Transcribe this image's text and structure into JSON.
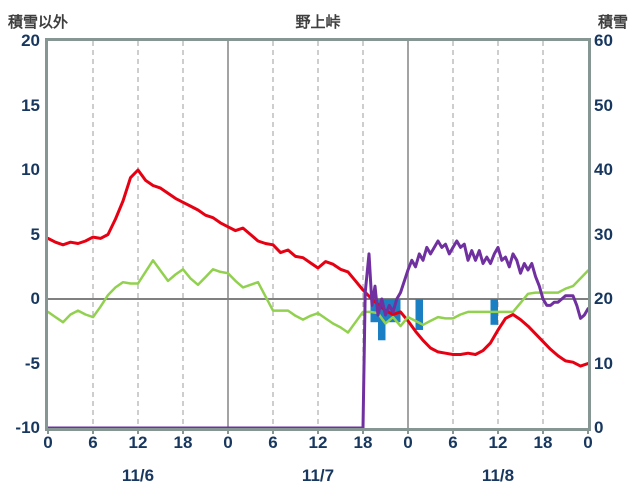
{
  "header": {
    "left_axis_title": "積雪以外",
    "chart_title": "野上峠",
    "right_axis_title": "積雪"
  },
  "colors": {
    "frame": "#859693",
    "grid_dashed": "#a6a6a6",
    "grid_solid": "#8c8c8c",
    "zero_line": "#808080",
    "axis_text": "#17375e",
    "title_text": "#3f3f3f",
    "red_line": "#e60012",
    "green_line": "#92d14f",
    "purple_line": "#7030a0",
    "blue_bars": "#1b7fc3"
  },
  "chart_data": {
    "type": "line",
    "title": "野上峠",
    "left_axis": {
      "label": "積雪以外",
      "min": -10,
      "max": 20,
      "ticks": [
        20,
        15,
        10,
        5,
        0,
        -5,
        -10
      ]
    },
    "right_axis": {
      "label": "積雪",
      "min": 0,
      "max": 60,
      "ticks": [
        60,
        50,
        40,
        30,
        20,
        10,
        0
      ]
    },
    "x_axis": {
      "hours_total": 72,
      "tick_interval_hours": 6,
      "tick_labels": [
        "0",
        "6",
        "12",
        "18",
        "0",
        "6",
        "12",
        "18",
        "0",
        "6",
        "12",
        "18",
        "0"
      ],
      "solid_gridline_hours": [
        24,
        48
      ],
      "date_labels": [
        {
          "label": "11/6",
          "center_hour": 12
        },
        {
          "label": "11/7",
          "center_hour": 36
        },
        {
          "label": "11/8",
          "center_hour": 60
        }
      ]
    },
    "grid": {
      "horizontal": "zero-line-only",
      "vertical": "every-6-hours"
    },
    "legend": "none",
    "series": [
      {
        "name": "temperature-red",
        "axis": "left",
        "color": "#e60012",
        "width": 3,
        "points": [
          [
            0,
            4.7
          ],
          [
            1,
            4.4
          ],
          [
            2,
            4.2
          ],
          [
            3,
            4.4
          ],
          [
            4,
            4.3
          ],
          [
            5,
            4.5
          ],
          [
            6,
            4.8
          ],
          [
            7,
            4.7
          ],
          [
            8,
            5.0
          ],
          [
            9,
            6.2
          ],
          [
            10,
            7.6
          ],
          [
            11,
            9.4
          ],
          [
            12,
            10.0
          ],
          [
            13,
            9.2
          ],
          [
            14,
            8.8
          ],
          [
            15,
            8.6
          ],
          [
            16,
            8.2
          ],
          [
            17,
            7.8
          ],
          [
            18,
            7.5
          ],
          [
            19,
            7.2
          ],
          [
            20,
            6.9
          ],
          [
            21,
            6.5
          ],
          [
            22,
            6.3
          ],
          [
            23,
            5.9
          ],
          [
            24,
            5.6
          ],
          [
            25,
            5.3
          ],
          [
            26,
            5.5
          ],
          [
            27,
            5.0
          ],
          [
            28,
            4.5
          ],
          [
            29,
            4.3
          ],
          [
            30,
            4.2
          ],
          [
            31,
            3.6
          ],
          [
            32,
            3.8
          ],
          [
            33,
            3.3
          ],
          [
            34,
            3.2
          ],
          [
            35,
            2.8
          ],
          [
            36,
            2.4
          ],
          [
            37,
            2.9
          ],
          [
            38,
            2.7
          ],
          [
            39,
            2.3
          ],
          [
            40,
            2.1
          ],
          [
            41,
            1.4
          ],
          [
            42,
            0.7
          ],
          [
            43,
            0.1
          ],
          [
            44,
            -0.4
          ],
          [
            45,
            -0.9
          ],
          [
            46,
            -1.2
          ],
          [
            47,
            -1.0
          ],
          [
            48,
            -1.7
          ],
          [
            49,
            -2.5
          ],
          [
            50,
            -3.2
          ],
          [
            51,
            -3.8
          ],
          [
            52,
            -4.1
          ],
          [
            53,
            -4.2
          ],
          [
            54,
            -4.3
          ],
          [
            55,
            -4.3
          ],
          [
            56,
            -4.2
          ],
          [
            57,
            -4.3
          ],
          [
            58,
            -4.0
          ],
          [
            59,
            -3.4
          ],
          [
            60,
            -2.4
          ],
          [
            61,
            -1.5
          ],
          [
            62,
            -1.2
          ],
          [
            63,
            -1.6
          ],
          [
            64,
            -2.1
          ],
          [
            65,
            -2.7
          ],
          [
            66,
            -3.3
          ],
          [
            67,
            -3.9
          ],
          [
            68,
            -4.4
          ],
          [
            69,
            -4.8
          ],
          [
            70,
            -4.9
          ],
          [
            71,
            -5.2
          ],
          [
            72,
            -5.0
          ]
        ]
      },
      {
        "name": "road-temp-green",
        "axis": "left",
        "color": "#92d14f",
        "width": 2.5,
        "points": [
          [
            0,
            -1.0
          ],
          [
            1,
            -1.4
          ],
          [
            2,
            -1.8
          ],
          [
            3,
            -1.2
          ],
          [
            4,
            -0.9
          ],
          [
            5,
            -1.2
          ],
          [
            6,
            -1.4
          ],
          [
            7,
            -0.6
          ],
          [
            8,
            0.3
          ],
          [
            9,
            0.9
          ],
          [
            10,
            1.3
          ],
          [
            11,
            1.2
          ],
          [
            12,
            1.2
          ],
          [
            13,
            2.1
          ],
          [
            14,
            3.0
          ],
          [
            15,
            2.2
          ],
          [
            16,
            1.4
          ],
          [
            17,
            1.9
          ],
          [
            18,
            2.3
          ],
          [
            19,
            1.6
          ],
          [
            20,
            1.1
          ],
          [
            21,
            1.7
          ],
          [
            22,
            2.3
          ],
          [
            23,
            2.1
          ],
          [
            24,
            2.0
          ],
          [
            25,
            1.4
          ],
          [
            26,
            0.9
          ],
          [
            27,
            1.1
          ],
          [
            28,
            1.3
          ],
          [
            29,
            0.2
          ],
          [
            30,
            -0.9
          ],
          [
            31,
            -0.9
          ],
          [
            32,
            -0.9
          ],
          [
            33,
            -1.3
          ],
          [
            34,
            -1.6
          ],
          [
            35,
            -1.3
          ],
          [
            36,
            -1.1
          ],
          [
            37,
            -1.5
          ],
          [
            38,
            -1.9
          ],
          [
            39,
            -2.2
          ],
          [
            40,
            -2.6
          ],
          [
            41,
            -1.8
          ],
          [
            42,
            -1.0
          ],
          [
            43,
            -1.0
          ],
          [
            44,
            -1.1
          ],
          [
            45,
            -1.9
          ],
          [
            46,
            -1.4
          ],
          [
            47,
            -2.1
          ],
          [
            48,
            -1.4
          ],
          [
            49,
            -1.7
          ],
          [
            50,
            -2.0
          ],
          [
            51,
            -1.7
          ],
          [
            52,
            -1.4
          ],
          [
            53,
            -1.5
          ],
          [
            54,
            -1.5
          ],
          [
            55,
            -1.2
          ],
          [
            56,
            -1.0
          ],
          [
            57,
            -1.0
          ],
          [
            58,
            -1.0
          ],
          [
            59,
            -1.0
          ],
          [
            60,
            -1.0
          ],
          [
            61,
            -1.0
          ],
          [
            62,
            -1.0
          ],
          [
            63,
            -0.3
          ],
          [
            64,
            0.4
          ],
          [
            65,
            0.5
          ],
          [
            66,
            0.5
          ],
          [
            67,
            0.5
          ],
          [
            68,
            0.5
          ],
          [
            69,
            0.8
          ],
          [
            70,
            1.0
          ],
          [
            71,
            1.6
          ],
          [
            72,
            2.2
          ]
        ]
      },
      {
        "name": "snow-depth-purple",
        "axis": "right",
        "color": "#7030a0",
        "width": 3,
        "points": [
          [
            0,
            0
          ],
          [
            42,
            0
          ],
          [
            42.3,
            21
          ],
          [
            42.8,
            27
          ],
          [
            43.2,
            19
          ],
          [
            43.6,
            22
          ],
          [
            44,
            17.5
          ],
          [
            44.5,
            20
          ],
          [
            45,
            17.5
          ],
          [
            45.5,
            19
          ],
          [
            46,
            18
          ],
          [
            46.5,
            20
          ],
          [
            47,
            21
          ],
          [
            48,
            24.5
          ],
          [
            48.5,
            26
          ],
          [
            49,
            25
          ],
          [
            49.5,
            27
          ],
          [
            50,
            26
          ],
          [
            50.5,
            28
          ],
          [
            51,
            27
          ],
          [
            52,
            29
          ],
          [
            52.5,
            28
          ],
          [
            53,
            28.5
          ],
          [
            53.5,
            27
          ],
          [
            54,
            28
          ],
          [
            54.5,
            29
          ],
          [
            55,
            28
          ],
          [
            55.5,
            28.5
          ],
          [
            56,
            26
          ],
          [
            56.5,
            27.5
          ],
          [
            57,
            26
          ],
          [
            57.5,
            27.5
          ],
          [
            58,
            25.5
          ],
          [
            58.5,
            26.5
          ],
          [
            59,
            25.5
          ],
          [
            59.5,
            27
          ],
          [
            60,
            28
          ],
          [
            60.5,
            26
          ],
          [
            61,
            26.5
          ],
          [
            61.5,
            25
          ],
          [
            62,
            27
          ],
          [
            62.5,
            26
          ],
          [
            63,
            24
          ],
          [
            63.5,
            25.5
          ],
          [
            64,
            24.5
          ],
          [
            64.5,
            25.5
          ],
          [
            65,
            23.5
          ],
          [
            65.5,
            22
          ],
          [
            66,
            20
          ],
          [
            66.5,
            19
          ],
          [
            67,
            19
          ],
          [
            67.5,
            19.5
          ],
          [
            68,
            19.5
          ],
          [
            68.5,
            20
          ],
          [
            69,
            20.5
          ],
          [
            70,
            20.5
          ],
          [
            70.5,
            19
          ],
          [
            71,
            17
          ],
          [
            71.5,
            17.5
          ],
          [
            72,
            18.5
          ]
        ]
      }
    ],
    "bars": {
      "name": "snowfall-blue-bars",
      "axis": "left",
      "color": "#1b7fc3",
      "baseline": 0,
      "direction": "down",
      "width_hours": 1,
      "points": [
        [
          43,
          1.8
        ],
        [
          44,
          3.2
        ],
        [
          45,
          1.8
        ],
        [
          46,
          1.8
        ],
        [
          49,
          2.4
        ],
        [
          59,
          2.0
        ]
      ]
    }
  }
}
